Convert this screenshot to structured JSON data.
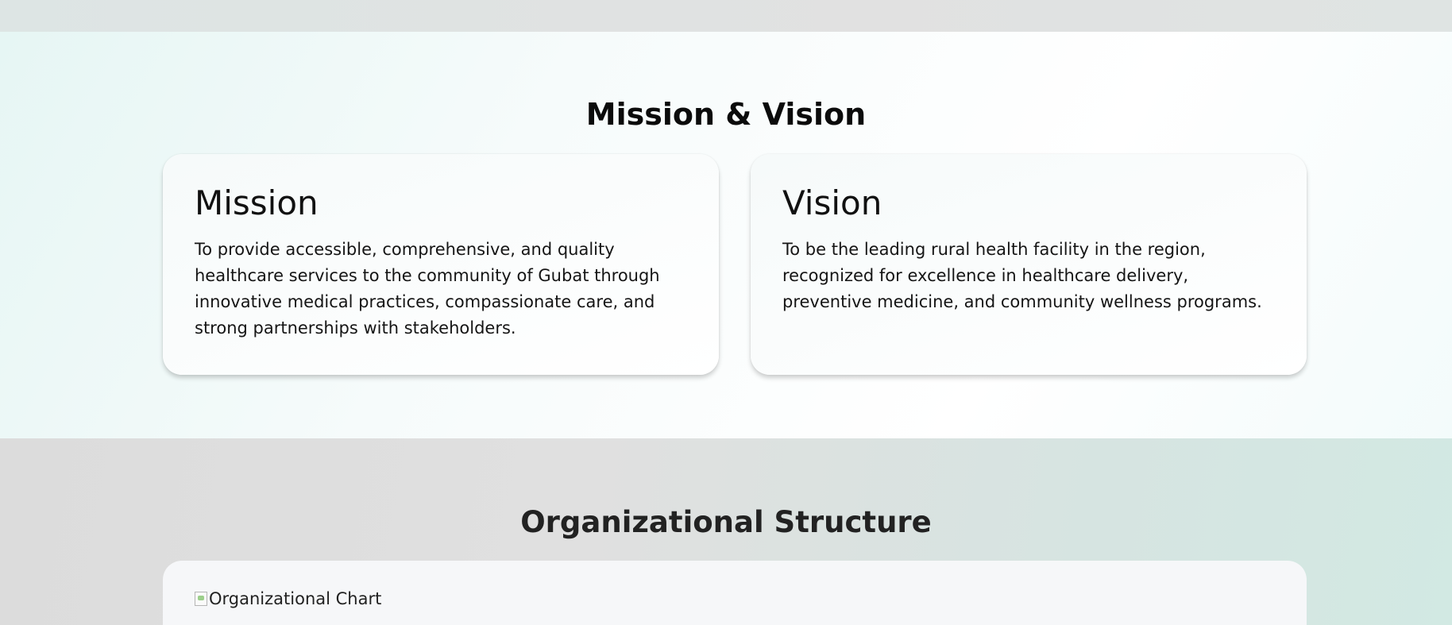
{
  "mission_vision": {
    "title": "Mission & Vision",
    "mission": {
      "heading": "Mission",
      "text": "To provide accessible, comprehensive, and quality healthcare services to the community of Gubat through innovative medical practices, compassionate care, and strong partnerships with stakeholders."
    },
    "vision": {
      "heading": "Vision",
      "text": "To be the leading rural health facility in the region, recognized for excellence in healthcare delivery, preventive medicine, and community wellness programs."
    }
  },
  "org_structure": {
    "title": "Organizational Structure",
    "image_alt": "Organizational Chart"
  }
}
